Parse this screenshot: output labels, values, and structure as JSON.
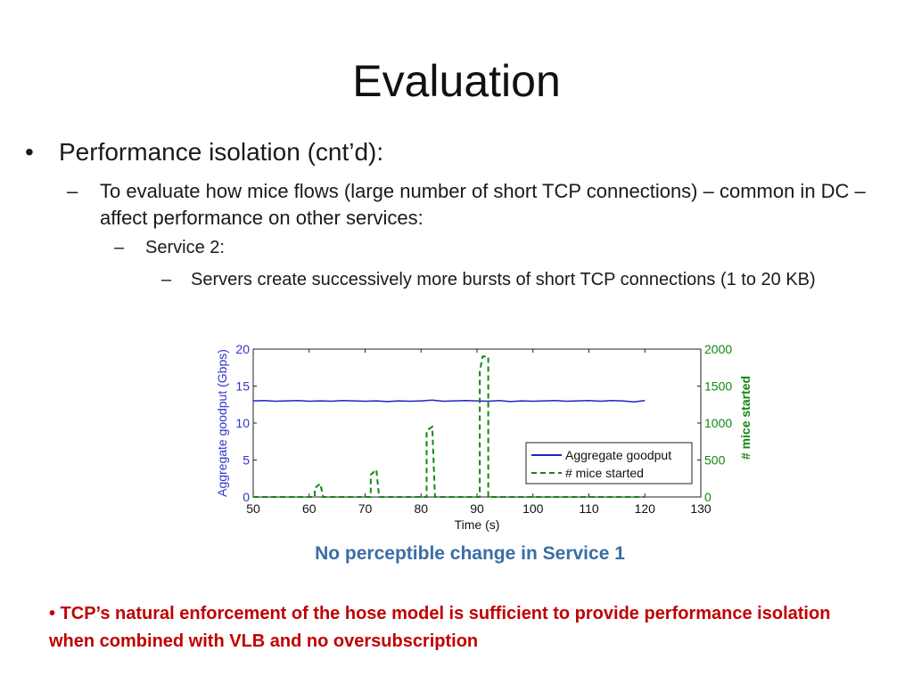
{
  "slide": {
    "title": "Evaluation",
    "bullets": {
      "l1_mark": "•",
      "l1": "Performance isolation (cnt’d):",
      "l2_mark": "–",
      "l2": "To evaluate how mice flows (large number of short TCP connections) – common in DC – affect performance on other services:",
      "l3_mark": "–",
      "l3": "Service 2:",
      "l4_mark": "–",
      "l4": "Servers create successively more bursts of short TCP connections (1 to 20 KB)"
    },
    "note": "No perceptible change in Service 1",
    "conclusion": "• TCP’s natural enforcement of the hose model is sufficient to provide performance isolation when combined with VLB and no oversubscription"
  },
  "chart_data": {
    "type": "line",
    "xlabel": "Time (s)",
    "ylabel_left": "Aggregate goodput (Gbps)",
    "ylabel_right": "# mice started",
    "xlim": [
      50,
      130
    ],
    "ylim_left": [
      0,
      20
    ],
    "ylim_right": [
      0,
      2000
    ],
    "x_ticks": [
      "50",
      "60",
      "70",
      "80",
      "90",
      "100",
      "110",
      "120",
      "130"
    ],
    "y_left_ticks": [
      "0",
      "5",
      "10",
      "15",
      "20"
    ],
    "y_right_ticks": [
      "0",
      "500",
      "1000",
      "1500",
      "2000"
    ],
    "grid": false,
    "legend_position": "lower-right",
    "series": [
      {
        "name": "Aggregate goodput",
        "axis": "left",
        "color": "#2222cc",
        "style": "solid",
        "points": [
          [
            50,
            13.0
          ],
          [
            52,
            13.05
          ],
          [
            54,
            12.95
          ],
          [
            56,
            13.0
          ],
          [
            58,
            13.05
          ],
          [
            60,
            12.95
          ],
          [
            62,
            13.0
          ],
          [
            64,
            12.95
          ],
          [
            66,
            13.05
          ],
          [
            68,
            13.0
          ],
          [
            70,
            12.95
          ],
          [
            72,
            13.0
          ],
          [
            74,
            12.9
          ],
          [
            76,
            13.0
          ],
          [
            78,
            12.95
          ],
          [
            80,
            13.0
          ],
          [
            82,
            13.1
          ],
          [
            84,
            12.95
          ],
          [
            86,
            13.0
          ],
          [
            88,
            13.05
          ],
          [
            90,
            13.0
          ],
          [
            92,
            12.95
          ],
          [
            94,
            13.05
          ],
          [
            96,
            12.9
          ],
          [
            98,
            13.0
          ],
          [
            100,
            12.95
          ],
          [
            102,
            13.0
          ],
          [
            104,
            13.05
          ],
          [
            106,
            12.95
          ],
          [
            108,
            13.0
          ],
          [
            110,
            13.05
          ],
          [
            112,
            12.95
          ],
          [
            114,
            13.05
          ],
          [
            116,
            13.0
          ],
          [
            118,
            12.85
          ],
          [
            120,
            13.05
          ]
        ]
      },
      {
        "name": "# mice started",
        "axis": "right",
        "color": "#118811",
        "style": "dashed",
        "points": [
          [
            50,
            0
          ],
          [
            61,
            0
          ],
          [
            61,
            120
          ],
          [
            62,
            180
          ],
          [
            62.5,
            0
          ],
          [
            71,
            0
          ],
          [
            71,
            300
          ],
          [
            72,
            370
          ],
          [
            72.5,
            0
          ],
          [
            81,
            0
          ],
          [
            81,
            900
          ],
          [
            82,
            950
          ],
          [
            82.5,
            0
          ],
          [
            90.5,
            0
          ],
          [
            90.5,
            1700
          ],
          [
            91,
            1900
          ],
          [
            92,
            1900
          ],
          [
            92,
            0
          ],
          [
            120,
            0
          ]
        ]
      }
    ]
  },
  "colors": {
    "left_axis": "#3333cc",
    "right_axis": "#118811",
    "note": "#3a6ea5",
    "conclusion": "#c00000"
  }
}
